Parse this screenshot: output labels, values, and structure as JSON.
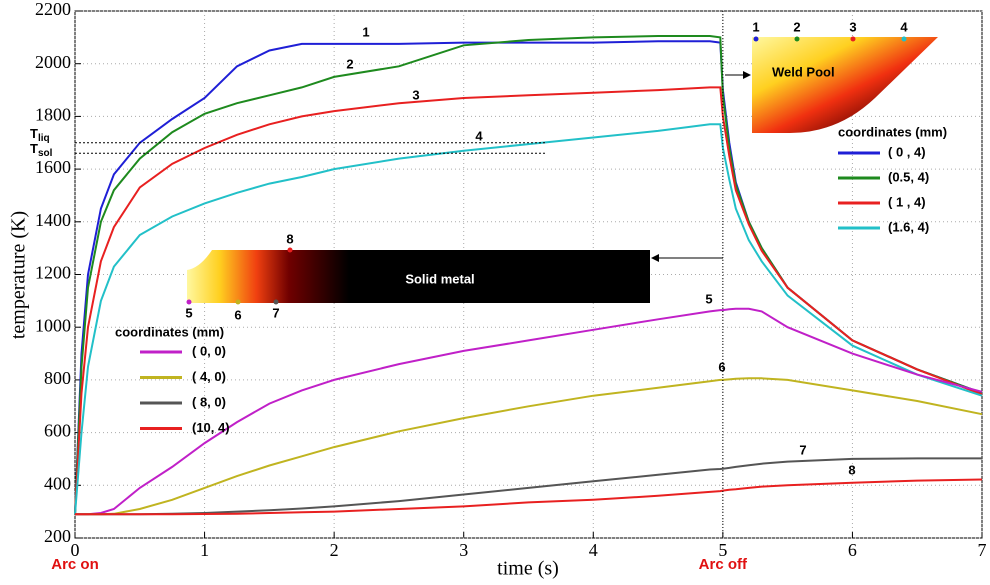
{
  "chart_data": {
    "type": "line",
    "xlabel": "time (s)",
    "ylabel": "temperature (K)",
    "xlim": [
      0,
      7
    ],
    "xticks": [
      0,
      1,
      2,
      3,
      4,
      5,
      6,
      7
    ],
    "ylim": [
      200,
      2200
    ],
    "yticks": [
      200,
      400,
      600,
      800,
      1000,
      1200,
      1400,
      1600,
      1800,
      2000,
      2200
    ],
    "grid": true,
    "x": [
      0,
      0.05,
      0.1,
      0.2,
      0.3,
      0.5,
      0.75,
      1,
      1.25,
      1.5,
      1.75,
      2,
      2.5,
      3,
      3.5,
      4,
      4.5,
      4.9,
      4.98,
      5,
      5.05,
      5.1,
      5.2,
      5.3,
      5.5,
      6,
      6.5,
      7
    ],
    "legend_title": "coordinates (mm)",
    "series": [
      {
        "name": "( 0  , 4)",
        "label": "1",
        "color": "#1f1fd6",
        "values": [
          290,
          900,
          1200,
          1450,
          1580,
          1700,
          1790,
          1870,
          1990,
          2050,
          2075,
          2075,
          2075,
          2080,
          2080,
          2080,
          2085,
          2085,
          2080,
          1900,
          1700,
          1550,
          1400,
          1300,
          1150,
          950,
          840,
          750
        ]
      },
      {
        "name": "(0.5, 4)",
        "label": "2",
        "color": "#1e8a1e",
        "values": [
          290,
          850,
          1150,
          1400,
          1520,
          1640,
          1740,
          1810,
          1850,
          1880,
          1910,
          1950,
          1990,
          2070,
          2090,
          2100,
          2105,
          2105,
          2100,
          1880,
          1680,
          1540,
          1400,
          1300,
          1150,
          950,
          840,
          750
        ]
      },
      {
        "name": "( 1  , 4)",
        "label": "3",
        "color": "#e82020",
        "values": [
          290,
          750,
          1000,
          1250,
          1380,
          1530,
          1620,
          1680,
          1730,
          1770,
          1800,
          1820,
          1850,
          1870,
          1880,
          1890,
          1900,
          1910,
          1910,
          1800,
          1650,
          1520,
          1390,
          1290,
          1150,
          950,
          840,
          745
        ]
      },
      {
        "name": "(1.6, 4)",
        "label": "4",
        "color": "#22c0c8",
        "values": [
          290,
          600,
          850,
          1100,
          1230,
          1350,
          1420,
          1470,
          1510,
          1545,
          1570,
          1600,
          1640,
          1670,
          1695,
          1720,
          1745,
          1770,
          1770,
          1680,
          1560,
          1450,
          1330,
          1250,
          1120,
          930,
          820,
          740
        ]
      },
      {
        "name": "( 0, 0)",
        "label": "5",
        "color": "#c020c8",
        "values": [
          290,
          290,
          290,
          295,
          310,
          390,
          470,
          560,
          640,
          710,
          760,
          800,
          860,
          910,
          950,
          990,
          1030,
          1060,
          1065,
          1065,
          1068,
          1070,
          1070,
          1060,
          1000,
          900,
          820,
          755
        ]
      },
      {
        "name": "( 4, 0)",
        "label": "6",
        "color": "#c0b420",
        "values": [
          290,
          290,
          290,
          290,
          292,
          310,
          345,
          390,
          435,
          475,
          510,
          545,
          605,
          655,
          700,
          740,
          770,
          795,
          800,
          800,
          802,
          804,
          806,
          806,
          800,
          760,
          720,
          670
        ]
      },
      {
        "name": "( 8, 0)",
        "label": "7",
        "color": "#555555",
        "values": [
          290,
          290,
          290,
          290,
          290,
          290,
          292,
          295,
          300,
          305,
          312,
          320,
          340,
          365,
          390,
          415,
          440,
          460,
          462,
          463,
          466,
          470,
          476,
          482,
          490,
          500,
          502,
          502
        ]
      },
      {
        "name": "(10, 4)",
        "label": "8",
        "color": "#e82020",
        "values": [
          290,
          290,
          290,
          290,
          290,
          290,
          290,
          291,
          292,
          295,
          298,
          300,
          310,
          320,
          335,
          345,
          360,
          375,
          378,
          380,
          383,
          385,
          390,
          395,
          400,
          410,
          418,
          422
        ]
      }
    ],
    "arc_on": {
      "label": "Arc on",
      "x": 0
    },
    "arc_off": {
      "label": "Arc off",
      "x": 5
    },
    "t_liq": {
      "symbol": "T",
      "subscript": "liq",
      "value": 1700
    },
    "t_sol": {
      "symbol": "T",
      "subscript": "sol",
      "value": 1660
    },
    "weld_pool_label": "Weld Pool",
    "solid_metal_label": "Solid metal"
  }
}
